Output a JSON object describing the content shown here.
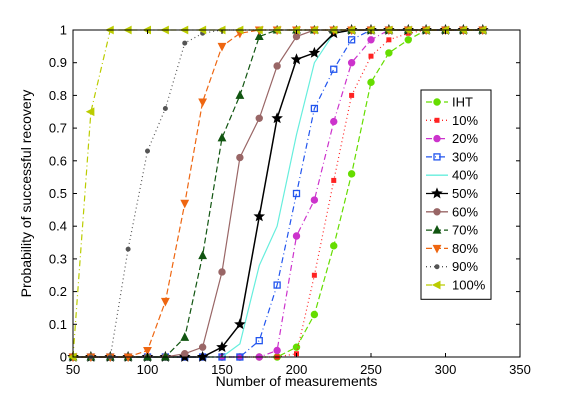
{
  "chart_data": {
    "type": "line",
    "title": "",
    "xlabel": "Number of measurements",
    "ylabel": "Probability of successful recovery",
    "xlim": [
      50,
      350
    ],
    "ylim": [
      0,
      1
    ],
    "xticks": [
      50,
      100,
      150,
      200,
      250,
      300,
      350
    ],
    "yticks": [
      0,
      0.1,
      0.2,
      0.3,
      0.4,
      0.5,
      0.6,
      0.7,
      0.8,
      0.9,
      1
    ],
    "xtick_labels": [
      "50",
      "100",
      "150",
      "200",
      "250",
      "300",
      "350"
    ],
    "ytick_labels": [
      "0",
      "0.1",
      "0.2",
      "0.3",
      "0.4",
      "0.5",
      "0.6",
      "0.7",
      "0.8",
      "0.9",
      "1"
    ],
    "grid": false,
    "legend_position": "right",
    "series": [
      {
        "name": "IHT",
        "color": "#66dd00",
        "dash": "6,3",
        "marker": "circle",
        "x": [
          50,
          62,
          75,
          87,
          100,
          112,
          125,
          137,
          150,
          162,
          175,
          187,
          200,
          212,
          225,
          237,
          250,
          262,
          275,
          287,
          300,
          312,
          325
        ],
        "y": [
          0,
          0,
          0,
          0,
          0,
          0,
          0,
          0,
          0,
          0,
          0,
          0,
          0.03,
          0.13,
          0.34,
          0.56,
          0.84,
          0.93,
          0.97,
          1,
          1,
          1,
          1
        ]
      },
      {
        "name": "10%",
        "color": "#ff2222",
        "dash": "1,3",
        "marker": "square-small",
        "x": [
          50,
          62,
          75,
          87,
          100,
          112,
          125,
          137,
          150,
          162,
          175,
          187,
          200,
          212,
          225,
          237,
          250,
          262,
          275,
          287,
          300,
          312,
          325
        ],
        "y": [
          0,
          0,
          0,
          0,
          0,
          0,
          0,
          0,
          0,
          0,
          0,
          0,
          0.01,
          0.25,
          0.54,
          0.8,
          0.92,
          0.97,
          0.99,
          1,
          1,
          1,
          1
        ]
      },
      {
        "name": "20%",
        "color": "#cc33cc",
        "dash": "6,3,1,3",
        "marker": "circle",
        "x": [
          50,
          62,
          75,
          87,
          100,
          112,
          125,
          137,
          150,
          162,
          175,
          187,
          200,
          212,
          225,
          237,
          250,
          262,
          275,
          287,
          300,
          312,
          325
        ],
        "y": [
          0,
          0,
          0,
          0,
          0,
          0,
          0,
          0,
          0,
          0,
          0,
          0.02,
          0.37,
          0.48,
          0.72,
          0.9,
          0.97,
          1,
          1,
          1,
          1,
          1,
          1
        ]
      },
      {
        "name": "30%",
        "color": "#2255ee",
        "dash": "6,3,1,3",
        "marker": "square",
        "x": [
          50,
          62,
          75,
          87,
          100,
          112,
          125,
          137,
          150,
          162,
          175,
          187,
          200,
          212,
          225,
          237,
          250,
          262,
          275,
          287,
          300,
          312,
          325
        ],
        "y": [
          0,
          0,
          0,
          0,
          0,
          0,
          0,
          0,
          0,
          0,
          0.05,
          0.22,
          0.5,
          0.76,
          0.88,
          0.97,
          1,
          1,
          1,
          1,
          1,
          1,
          1
        ]
      },
      {
        "name": "40%",
        "color": "#66eedd",
        "dash": "",
        "marker": "none",
        "x": [
          50,
          62,
          75,
          87,
          100,
          112,
          125,
          137,
          150,
          162,
          175,
          187,
          200,
          212,
          225,
          237,
          250,
          262,
          275,
          287,
          300,
          312,
          325
        ],
        "y": [
          0,
          0,
          0,
          0,
          0,
          0,
          0,
          0,
          0,
          0.04,
          0.28,
          0.4,
          0.68,
          0.9,
          0.99,
          1,
          1,
          1,
          1,
          1,
          1,
          1,
          1
        ]
      },
      {
        "name": "50%",
        "color": "#000000",
        "dash": "",
        "marker": "star",
        "x": [
          50,
          62,
          75,
          87,
          100,
          112,
          125,
          137,
          150,
          162,
          175,
          187,
          200,
          212,
          225,
          237,
          250,
          262,
          275,
          287,
          300,
          312,
          325
        ],
        "y": [
          0,
          0,
          0,
          0,
          0,
          0,
          0,
          0,
          0.03,
          0.1,
          0.43,
          0.73,
          0.91,
          0.93,
          0.99,
          1,
          1,
          1,
          1,
          1,
          1,
          1,
          1
        ]
      },
      {
        "name": "60%",
        "color": "#996666",
        "dash": "",
        "marker": "circle",
        "x": [
          50,
          62,
          75,
          87,
          100,
          112,
          125,
          137,
          150,
          162,
          175,
          187,
          200,
          212,
          225,
          237,
          250,
          262,
          275,
          287,
          300,
          312,
          325
        ],
        "y": [
          0,
          0,
          0,
          0,
          0,
          0,
          0.01,
          0.03,
          0.26,
          0.61,
          0.73,
          0.89,
          0.98,
          1,
          1,
          1,
          1,
          1,
          1,
          1,
          1,
          1,
          1
        ]
      },
      {
        "name": "70%",
        "color": "#115511",
        "dash": "6,3",
        "marker": "triangle-up",
        "x": [
          50,
          62,
          75,
          87,
          100,
          112,
          125,
          137,
          150,
          162,
          175,
          187,
          200,
          212,
          225,
          237,
          250,
          262,
          275,
          287,
          300,
          312,
          325
        ],
        "y": [
          0,
          0,
          0,
          0,
          0,
          0,
          0.06,
          0.31,
          0.67,
          0.8,
          0.98,
          1,
          1,
          1,
          1,
          1,
          1,
          1,
          1,
          1,
          1,
          1,
          1
        ]
      },
      {
        "name": "80%",
        "color": "#ee6611",
        "dash": "6,3",
        "marker": "triangle-down",
        "x": [
          50,
          62,
          75,
          87,
          100,
          112,
          125,
          137,
          150,
          162,
          175,
          187,
          200,
          212,
          225,
          237,
          250,
          262,
          275,
          287,
          300,
          312,
          325
        ],
        "y": [
          0,
          0,
          0,
          0,
          0.02,
          0.17,
          0.47,
          0.78,
          0.95,
          0.99,
          1,
          1,
          1,
          1,
          1,
          1,
          1,
          1,
          1,
          1,
          1,
          1,
          1
        ]
      },
      {
        "name": "90%",
        "color": "#555555",
        "dash": "1,3",
        "marker": "dot",
        "x": [
          50,
          62,
          75,
          87,
          100,
          112,
          125,
          137,
          150,
          162,
          175,
          187,
          200,
          212,
          225,
          237,
          250,
          262,
          275,
          287,
          300,
          312,
          325
        ],
        "y": [
          0,
          0,
          0,
          0.33,
          0.63,
          0.76,
          0.96,
          0.99,
          1,
          1,
          1,
          1,
          1,
          1,
          1,
          1,
          1,
          1,
          1,
          1,
          1,
          1,
          1
        ]
      },
      {
        "name": "100%",
        "color": "#bbcc00",
        "dash": "6,3,1,3",
        "marker": "triangle-left",
        "x": [
          50,
          62,
          75,
          87,
          100,
          112,
          125,
          137,
          150,
          162,
          175,
          187,
          200,
          212,
          225,
          237,
          250,
          262,
          275,
          287,
          300,
          312,
          325
        ],
        "y": [
          0,
          0.75,
          1,
          1,
          1,
          1,
          1,
          1,
          1,
          1,
          1,
          1,
          1,
          1,
          1,
          1,
          1,
          1,
          1,
          1,
          1,
          1,
          1
        ]
      }
    ]
  }
}
